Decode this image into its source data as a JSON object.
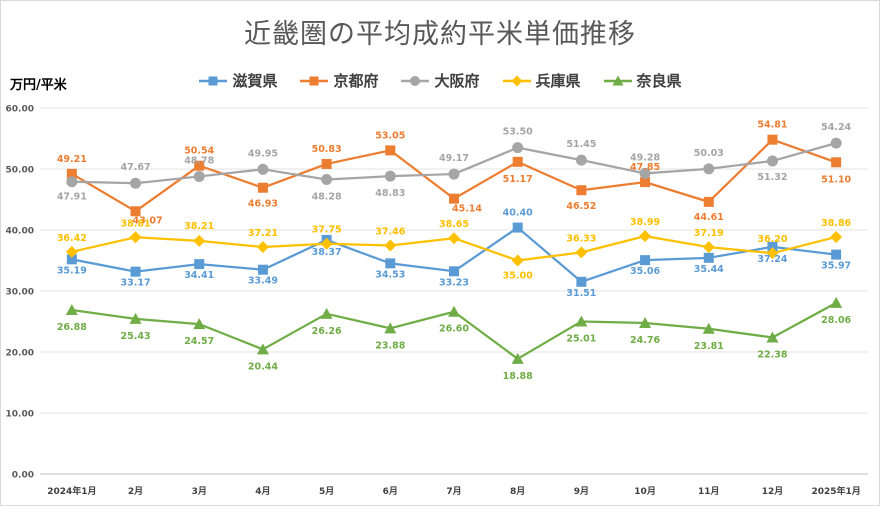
{
  "chart_data": {
    "type": "line",
    "title": "近畿圏の平均成約平米単価推移",
    "ylabel": "万円/平米",
    "xlabel": "",
    "ylim": [
      0,
      60
    ],
    "yticks": [
      "0.00",
      "10.00",
      "20.00",
      "30.00",
      "40.00",
      "50.00",
      "60.00"
    ],
    "grid": true,
    "legend_position": "top",
    "categories": [
      "2024年1月",
      "2月",
      "3月",
      "4月",
      "5月",
      "6月",
      "7月",
      "8月",
      "9月",
      "10月",
      "11月",
      "12月",
      "2025年1月"
    ],
    "series": [
      {
        "name": "滋賀県",
        "color": "#5b9bd5",
        "marker": "square",
        "values": [
          35.19,
          33.17,
          34.41,
          33.49,
          38.37,
          34.53,
          33.23,
          40.4,
          31.51,
          35.06,
          35.44,
          37.24,
          35.97
        ],
        "labels": [
          "35.19",
          "33.17",
          "34.41",
          "33.49",
          "38.37",
          "34.53",
          "33.23",
          "40.40",
          "31.51",
          "35.06",
          "35.44",
          "37.24",
          "35.97"
        ]
      },
      {
        "name": "京都府",
        "color": "#ed7d31",
        "marker": "square",
        "values": [
          49.21,
          43.07,
          50.54,
          46.93,
          50.83,
          53.05,
          45.14,
          51.17,
          46.52,
          47.85,
          44.61,
          54.81,
          51.1
        ],
        "labels": [
          "49.21",
          "43.07",
          "50.54",
          "46.93",
          "50.83",
          "53.05",
          "45.14",
          "51.17",
          "46.52",
          "47.85",
          "44.61",
          "54.81",
          "51.10"
        ]
      },
      {
        "name": "大阪府",
        "color": "#a5a5a5",
        "marker": "circle",
        "values": [
          47.91,
          47.67,
          48.78,
          49.95,
          48.28,
          48.83,
          49.17,
          53.5,
          51.45,
          49.28,
          50.03,
          51.32,
          54.24
        ],
        "labels": [
          "47.91",
          "47.67",
          "48.78",
          "49.95",
          "48.28",
          "48.83",
          "49.17",
          "53.50",
          "51.45",
          "49.28",
          "50.03",
          "51.32",
          "54.24"
        ]
      },
      {
        "name": "兵庫県",
        "color": "#ffc000",
        "marker": "diamond",
        "values": [
          36.42,
          38.81,
          38.21,
          37.21,
          37.75,
          37.46,
          38.65,
          35.0,
          36.33,
          38.99,
          37.19,
          36.2,
          38.86
        ],
        "labels": [
          "36.42",
          "38.81",
          "38.21",
          "37.21",
          "37.75",
          "37.46",
          "38.65",
          "35.00",
          "36.33",
          "38.99",
          "37.19",
          "36.20",
          "38.86"
        ]
      },
      {
        "name": "奈良県",
        "color": "#70ad47",
        "marker": "triangle",
        "values": [
          26.88,
          25.43,
          24.57,
          20.44,
          26.26,
          23.88,
          26.6,
          18.88,
          25.01,
          24.76,
          23.81,
          22.38,
          28.06
        ],
        "labels": [
          "26.88",
          "25.43",
          "24.57",
          "20.44",
          "26.26",
          "23.88",
          "26.60",
          "18.88",
          "25.01",
          "24.76",
          "23.81",
          "22.38",
          "28.06"
        ]
      }
    ]
  }
}
